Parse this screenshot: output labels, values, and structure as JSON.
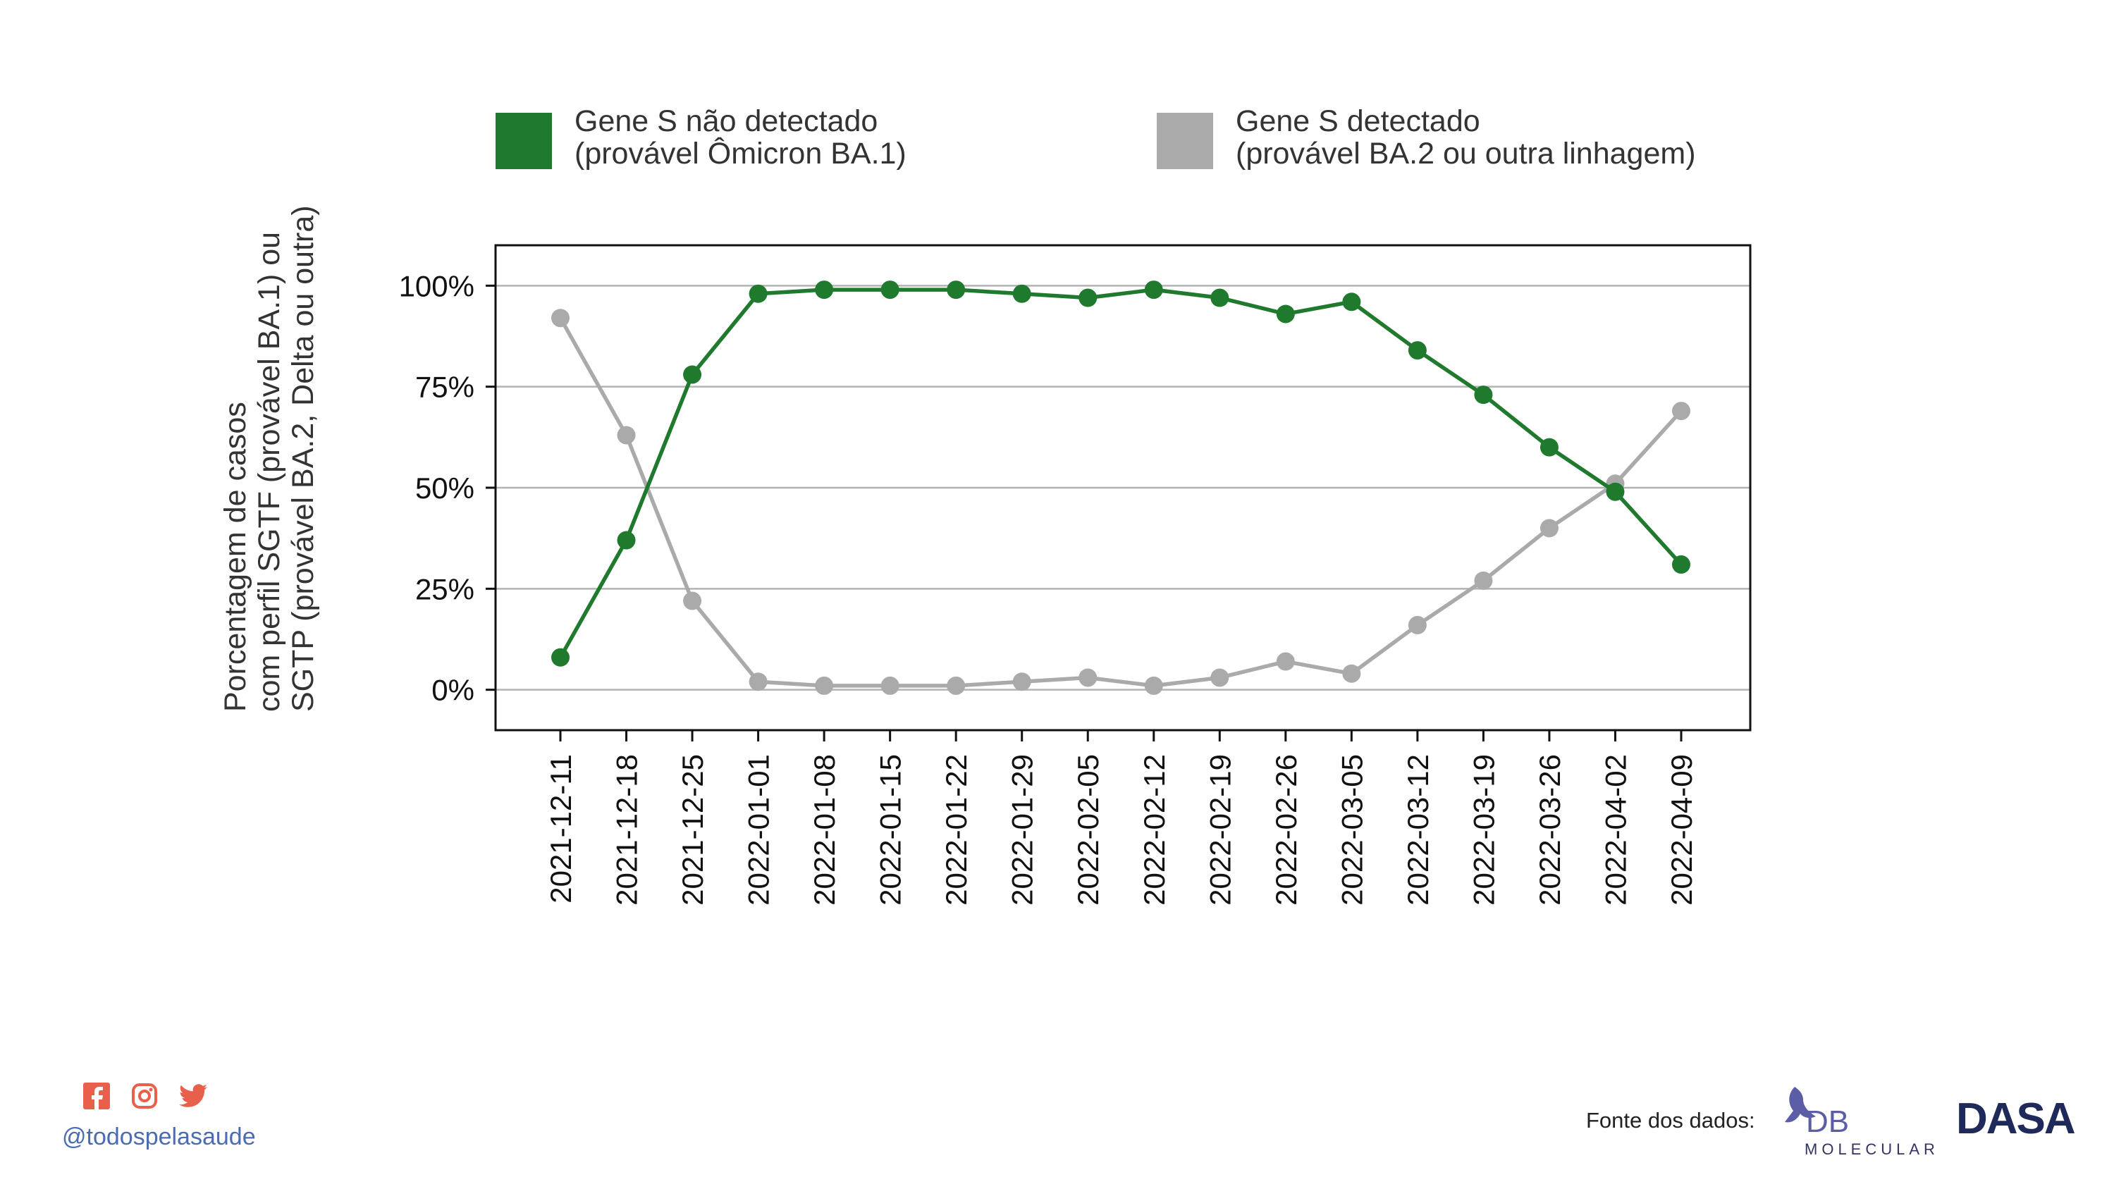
{
  "legend": [
    {
      "name": "Gene S não detectado",
      "subtitle": "(provável Ômicron BA.1)",
      "color": "#1f7a2e"
    },
    {
      "name": "Gene S detectado",
      "subtitle": "(provável BA.2 ou outra linhagem)",
      "color": "#aaaaaa"
    }
  ],
  "chart_data": {
    "type": "line",
    "x": [
      "2021-12-11",
      "2021-12-18",
      "2021-12-25",
      "2022-01-01",
      "2022-01-08",
      "2022-01-15",
      "2022-01-22",
      "2022-01-29",
      "2022-02-05",
      "2022-02-12",
      "2022-02-19",
      "2022-02-26",
      "2022-03-05",
      "2022-03-12",
      "2022-03-19",
      "2022-03-26",
      "2022-04-02",
      "2022-04-09"
    ],
    "series": [
      {
        "name": "Gene S não detectado (provável Ômicron BA.1)",
        "color": "#1f7a2e",
        "values": [
          8,
          37,
          78,
          98,
          99,
          99,
          99,
          98,
          97,
          99,
          97,
          93,
          96,
          84,
          73,
          60,
          49,
          31
        ]
      },
      {
        "name": "Gene S detectado (provável BA.2 ou outra linhagem)",
        "color": "#aaaaaa",
        "values": [
          92,
          63,
          22,
          2,
          1,
          1,
          1,
          2,
          3,
          1,
          3,
          7,
          4,
          16,
          27,
          40,
          51,
          69
        ]
      }
    ],
    "ylabel": [
      "Porcentagem de casos",
      "com perfil SGTF (provável BA.1) ou",
      "SGTP (provável BA.2, Delta ou outra)"
    ],
    "yticks": [
      0,
      25,
      50,
      75,
      100
    ],
    "ytick_labels": [
      "0%",
      "25%",
      "50%",
      "75%",
      "100%"
    ],
    "ylim": [
      -10,
      110
    ],
    "grid": "horizontal",
    "legend_position": "top"
  },
  "footer": {
    "handle": "@todospelasaude",
    "source_label": "Fonte dos dados:",
    "icons": [
      "facebook-icon",
      "instagram-icon",
      "twitter-icon"
    ],
    "icon_color": "#e8604c",
    "logos": [
      "DB MOLECULAR",
      "DASA"
    ]
  }
}
